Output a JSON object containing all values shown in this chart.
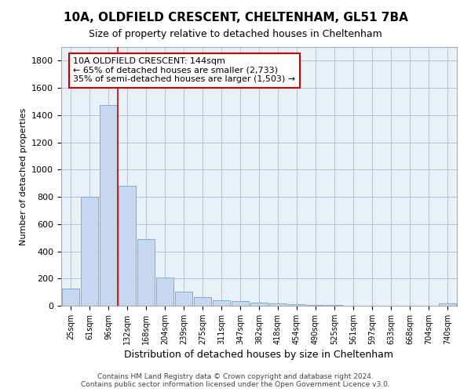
{
  "title": "10A, OLDFIELD CRESCENT, CHELTENHAM, GL51 7BA",
  "subtitle": "Size of property relative to detached houses in Cheltenham",
  "xlabel": "Distribution of detached houses by size in Cheltenham",
  "ylabel": "Number of detached properties",
  "footer_line1": "Contains HM Land Registry data © Crown copyright and database right 2024.",
  "footer_line2": "Contains public sector information licensed under the Open Government Licence v3.0.",
  "categories": [
    "25sqm",
    "61sqm",
    "96sqm",
    "132sqm",
    "168sqm",
    "204sqm",
    "239sqm",
    "275sqm",
    "311sqm",
    "347sqm",
    "382sqm",
    "418sqm",
    "454sqm",
    "490sqm",
    "525sqm",
    "561sqm",
    "597sqm",
    "633sqm",
    "668sqm",
    "704sqm",
    "740sqm"
  ],
  "values": [
    125,
    800,
    1475,
    880,
    490,
    205,
    105,
    65,
    40,
    35,
    25,
    20,
    10,
    5,
    3,
    2,
    2,
    1,
    1,
    1,
    15
  ],
  "bar_color": "#c5d8f0",
  "bar_edge_color": "#7aaed4",
  "axes_bg_color": "#eaf0f8",
  "background_color": "#ffffff",
  "grid_color": "#b0c4d8",
  "vline_color": "#cc0000",
  "vline_x_index": 2.5,
  "annotation_text": "10A OLDFIELD CRESCENT: 144sqm\n← 65% of detached houses are smaller (2,733)\n35% of semi-detached houses are larger (1,503) →",
  "annotation_box_color": "#cc0000",
  "ylim": [
    0,
    1900
  ],
  "yticks": [
    0,
    200,
    400,
    600,
    800,
    1000,
    1200,
    1400,
    1600,
    1800
  ],
  "title_fontsize": 11,
  "subtitle_fontsize": 9,
  "ylabel_fontsize": 8,
  "xlabel_fontsize": 9,
  "ytick_fontsize": 8,
  "xtick_fontsize": 7,
  "footer_fontsize": 6.5,
  "annot_fontsize": 8
}
